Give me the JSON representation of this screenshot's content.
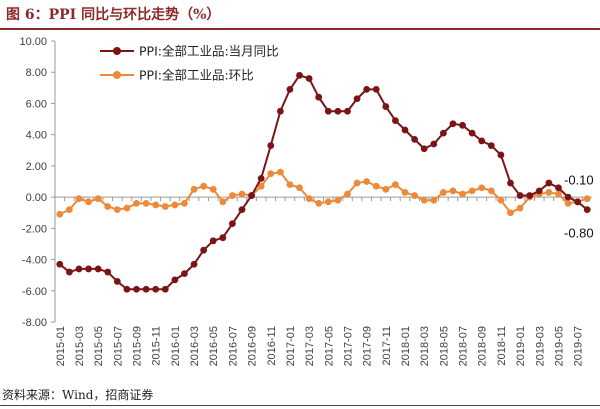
{
  "figure": {
    "title": "图 6：PPI 同比与环比走势（%）",
    "source": "资料来源：Wind，招商证券"
  },
  "chart_data": {
    "type": "line",
    "title": "图 6：PPI 同比与环比走势（%）",
    "xlabel": "",
    "ylabel": "",
    "ylim": [
      -8,
      10
    ],
    "yticks": [
      "10.00",
      "8.00",
      "6.00",
      "4.00",
      "2.00",
      "0.00",
      "-2.00",
      "-4.00",
      "-6.00",
      "-8.00"
    ],
    "ytick_values": [
      10,
      8,
      6,
      4,
      2,
      0,
      -2,
      -4,
      -6,
      -8
    ],
    "grid": false,
    "legend_position": "top-left",
    "x": [
      "2015-01",
      "2015-02",
      "2015-03",
      "2015-04",
      "2015-05",
      "2015-06",
      "2015-07",
      "2015-08",
      "2015-09",
      "2015-10",
      "2015-11",
      "2015-12",
      "2016-01",
      "2016-02",
      "2016-03",
      "2016-04",
      "2016-05",
      "2016-06",
      "2016-07",
      "2016-08",
      "2016-09",
      "2016-10",
      "2016-11",
      "2016-12",
      "2017-01",
      "2017-02",
      "2017-03",
      "2017-04",
      "2017-05",
      "2017-06",
      "2017-07",
      "2017-08",
      "2017-09",
      "2017-10",
      "2017-11",
      "2017-12",
      "2018-01",
      "2018-02",
      "2018-03",
      "2018-04",
      "2018-05",
      "2018-06",
      "2018-07",
      "2018-08",
      "2018-09",
      "2018-10",
      "2018-11",
      "2018-12",
      "2019-01",
      "2019-02",
      "2019-03",
      "2019-04",
      "2019-05",
      "2019-06",
      "2019-07",
      "2019-08"
    ],
    "x_tick_labels": [
      "2015-01",
      "2015-03",
      "2015-05",
      "2015-07",
      "2015-09",
      "2015-11",
      "2016-01",
      "2016-03",
      "2016-05",
      "2016-07",
      "2016-09",
      "2016-11",
      "2017-01",
      "2017-03",
      "2017-05",
      "2017-07",
      "2017-09",
      "2017-11",
      "2018-01",
      "2018-03",
      "2018-05",
      "2018-07",
      "2018-09",
      "2018-11",
      "2019-01",
      "2019-03",
      "2019-05",
      "2019-07"
    ],
    "series": [
      {
        "name": "PPI:全部工业品:当月同比",
        "color": "#7b1416",
        "marker": "circle",
        "values": [
          -4.3,
          -4.8,
          -4.6,
          -4.6,
          -4.6,
          -4.8,
          -5.4,
          -5.9,
          -5.9,
          -5.9,
          -5.9,
          -5.9,
          -5.3,
          -4.9,
          -4.3,
          -3.4,
          -2.8,
          -2.6,
          -1.7,
          -0.8,
          0.1,
          1.2,
          3.3,
          5.5,
          6.9,
          7.8,
          7.6,
          6.4,
          5.5,
          5.5,
          5.5,
          6.3,
          6.9,
          6.9,
          5.8,
          4.9,
          4.3,
          3.7,
          3.1,
          3.4,
          4.1,
          4.7,
          4.6,
          4.1,
          3.6,
          3.3,
          2.7,
          0.9,
          0.1,
          0.1,
          0.4,
          0.9,
          0.6,
          0.0,
          -0.3,
          -0.8
        ]
      },
      {
        "name": "PPI:全部工业品:环比",
        "color": "#ed8a3a",
        "marker": "circle",
        "values": [
          -1.1,
          -0.8,
          -0.1,
          -0.3,
          -0.1,
          -0.6,
          -0.8,
          -0.7,
          -0.4,
          -0.4,
          -0.5,
          -0.6,
          -0.5,
          -0.4,
          0.5,
          0.7,
          0.5,
          -0.3,
          0.1,
          0.2,
          0.1,
          0.7,
          1.5,
          1.6,
          0.8,
          0.6,
          -0.1,
          -0.4,
          -0.3,
          -0.2,
          0.2,
          0.9,
          1.0,
          0.7,
          0.5,
          0.8,
          0.3,
          0.1,
          -0.2,
          -0.2,
          0.3,
          0.4,
          0.2,
          0.4,
          0.6,
          0.4,
          -0.2,
          -1.0,
          -0.7,
          0.0,
          0.2,
          0.3,
          0.2,
          -0.4,
          -0.3,
          -0.1
        ]
      }
    ],
    "annotations": [
      {
        "text": "-0.10",
        "series": 1,
        "index": 55
      },
      {
        "text": "-0.80",
        "series": 0,
        "index": 55
      }
    ]
  }
}
